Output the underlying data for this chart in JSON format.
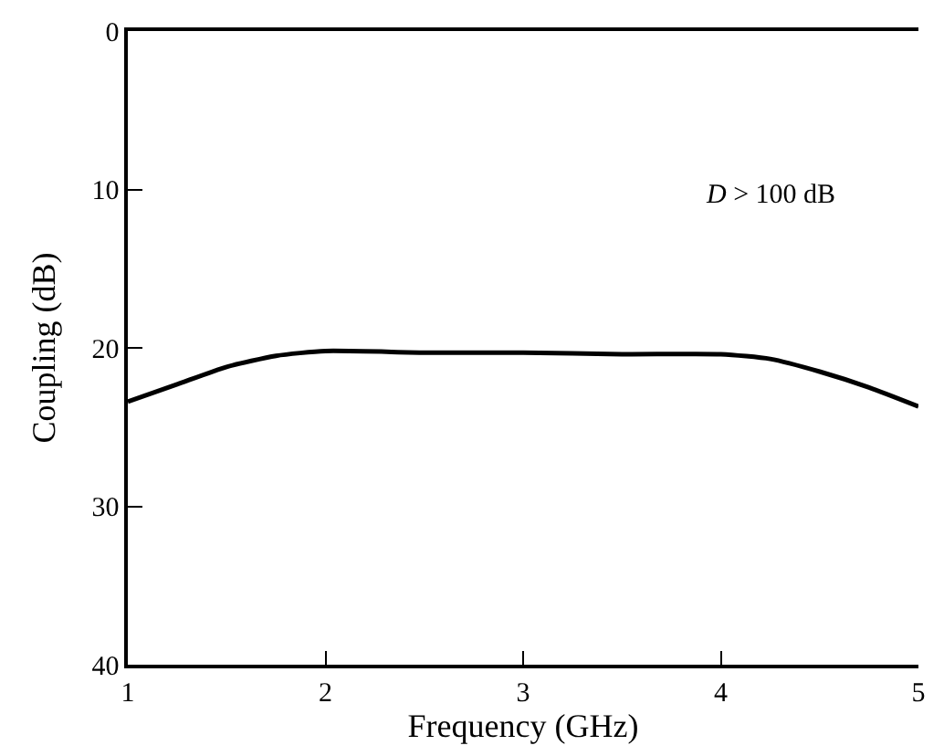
{
  "chart_data": {
    "type": "line",
    "xlabel": "Frequency (GHz)",
    "ylabel": "Coupling (dB)",
    "x": [
      1,
      1.25,
      1.5,
      1.75,
      2,
      2.5,
      3,
      3.5,
      4,
      4.25,
      4.5,
      4.75,
      5
    ],
    "series": [
      {
        "color": "#000000",
        "values": [
          23.4,
          22.3,
          21.2,
          20.5,
          20.2,
          20.3,
          20.3,
          20.4,
          20.4,
          20.7,
          21.5,
          22.5,
          23.7
        ]
      }
    ],
    "xlim": [
      1,
      5
    ],
    "ylim": [
      40,
      0
    ],
    "xticks": [
      1,
      2,
      3,
      4,
      5
    ],
    "yticks": [
      0,
      10,
      20,
      30,
      40
    ],
    "annotations": [
      "D > 100 dB"
    ],
    "marker": "none",
    "line_style": "solid"
  }
}
